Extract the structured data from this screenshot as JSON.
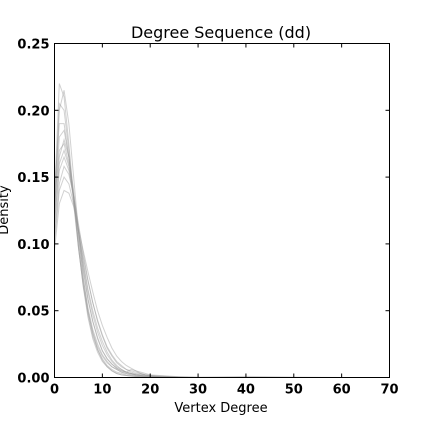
{
  "chart_data": {
    "type": "line",
    "title": "Degree Sequence (dd)",
    "xlabel": "Vertex Degree",
    "ylabel": "Density",
    "xlim": [
      0,
      70
    ],
    "ylim": [
      0,
      0.25
    ],
    "xticks": [
      "0",
      "10",
      "20",
      "30",
      "40",
      "50",
      "60",
      "70"
    ],
    "yticks": [
      "0.00",
      "0.05",
      "0.10",
      "0.15",
      "0.20",
      "0.25"
    ],
    "grid": false,
    "legend": "none",
    "line_color": "#9a9a9a",
    "x": [
      0,
      1,
      2,
      3,
      4,
      5,
      6,
      7,
      8,
      9,
      10,
      11,
      12,
      13,
      14,
      15,
      16,
      17,
      18,
      19,
      20,
      22,
      24,
      26,
      28,
      30,
      35,
      40,
      50,
      60
    ],
    "series": [
      {
        "values": [
          0.13,
          0.17,
          0.175,
          0.16,
          0.135,
          0.105,
          0.08,
          0.058,
          0.042,
          0.03,
          0.02,
          0.014,
          0.01,
          0.007,
          0.005,
          0.004,
          0.003,
          0.002,
          0.0015,
          0.001,
          0.001,
          0.0005,
          0.0003,
          0.0002,
          0.0001,
          0,
          0,
          0,
          0,
          0
        ]
      },
      {
        "values": [
          0.12,
          0.2,
          0.215,
          0.19,
          0.15,
          0.11,
          0.075,
          0.05,
          0.033,
          0.021,
          0.013,
          0.008,
          0.005,
          0.003,
          0.002,
          0.0015,
          0.001,
          0.0008,
          0.0005,
          0.0003,
          0.0002,
          0.0001,
          0,
          0,
          0,
          0,
          0,
          0,
          0,
          0
        ]
      },
      {
        "values": [
          0.11,
          0.155,
          0.165,
          0.155,
          0.135,
          0.11,
          0.087,
          0.066,
          0.05,
          0.037,
          0.027,
          0.019,
          0.013,
          0.009,
          0.006,
          0.004,
          0.003,
          0.002,
          0.0015,
          0.001,
          0.0008,
          0.0005,
          0.0003,
          0.0002,
          0.0001,
          0,
          0,
          0,
          0,
          0
        ]
      },
      {
        "values": [
          0.1,
          0.14,
          0.15,
          0.145,
          0.13,
          0.11,
          0.09,
          0.072,
          0.056,
          0.043,
          0.032,
          0.023,
          0.017,
          0.012,
          0.009,
          0.006,
          0.005,
          0.004,
          0.003,
          0.002,
          0.0015,
          0.001,
          0.0006,
          0.0003,
          0.0001,
          0,
          0,
          0,
          0,
          0
        ]
      },
      {
        "values": [
          0.125,
          0.18,
          0.185,
          0.165,
          0.135,
          0.102,
          0.074,
          0.052,
          0.036,
          0.025,
          0.017,
          0.012,
          0.008,
          0.006,
          0.004,
          0.003,
          0.002,
          0.0015,
          0.001,
          0.0008,
          0.0006,
          0.0003,
          0.0002,
          0.0001,
          0,
          0,
          0,
          0,
          0,
          0
        ]
      },
      {
        "values": [
          0.095,
          0.13,
          0.14,
          0.138,
          0.128,
          0.112,
          0.095,
          0.079,
          0.064,
          0.05,
          0.039,
          0.03,
          0.022,
          0.016,
          0.012,
          0.009,
          0.007,
          0.005,
          0.004,
          0.003,
          0.002,
          0.0015,
          0.001,
          0.0006,
          0.0003,
          0.0002,
          0.0001,
          0,
          0,
          0
        ]
      },
      {
        "values": [
          0.14,
          0.19,
          0.19,
          0.165,
          0.13,
          0.097,
          0.07,
          0.049,
          0.034,
          0.023,
          0.016,
          0.011,
          0.008,
          0.006,
          0.004,
          0.003,
          0.0025,
          0.002,
          0.0015,
          0.001,
          0.0008,
          0.0005,
          0.0003,
          0.0002,
          0.0001,
          0,
          0,
          0,
          0,
          0
        ]
      },
      {
        "values": [
          0.115,
          0.16,
          0.17,
          0.158,
          0.136,
          0.11,
          0.085,
          0.064,
          0.047,
          0.034,
          0.024,
          0.017,
          0.012,
          0.008,
          0.006,
          0.004,
          0.003,
          0.0025,
          0.002,
          0.0015,
          0.001,
          0.0006,
          0.0004,
          0.0002,
          0.0001,
          0,
          0,
          0,
          0,
          0
        ]
      },
      {
        "values": [
          0.13,
          0.205,
          0.2,
          0.17,
          0.133,
          0.098,
          0.069,
          0.047,
          0.031,
          0.021,
          0.014,
          0.009,
          0.006,
          0.004,
          0.003,
          0.002,
          0.0015,
          0.001,
          0.0008,
          0.0005,
          0.0003,
          0.0002,
          0.0001,
          0,
          0,
          0,
          0,
          0,
          0,
          0
        ]
      },
      {
        "values": [
          0.105,
          0.145,
          0.158,
          0.152,
          0.136,
          0.115,
          0.093,
          0.073,
          0.056,
          0.042,
          0.031,
          0.022,
          0.016,
          0.011,
          0.008,
          0.006,
          0.004,
          0.003,
          0.0025,
          0.002,
          0.0015,
          0.001,
          0.0007,
          0.0004,
          0.0002,
          0.0001,
          0.0005,
          0.0008,
          0.0003,
          0
        ]
      },
      {
        "values": [
          0.12,
          0.165,
          0.178,
          0.165,
          0.14,
          0.11,
          0.082,
          0.059,
          0.042,
          0.029,
          0.02,
          0.014,
          0.01,
          0.007,
          0.005,
          0.004,
          0.006,
          0.005,
          0.003,
          0.002,
          0.001,
          0.0006,
          0.0003,
          0.0002,
          0.0001,
          0,
          0,
          0,
          0,
          0
        ]
      },
      {
        "values": [
          0.135,
          0.22,
          0.21,
          0.175,
          0.135,
          0.098,
          0.068,
          0.045,
          0.029,
          0.019,
          0.012,
          0.008,
          0.005,
          0.003,
          0.002,
          0.0015,
          0.001,
          0.0007,
          0.0005,
          0.0003,
          0.0002,
          0.0001,
          0,
          0,
          0,
          0,
          0,
          0,
          0,
          0
        ]
      }
    ]
  }
}
